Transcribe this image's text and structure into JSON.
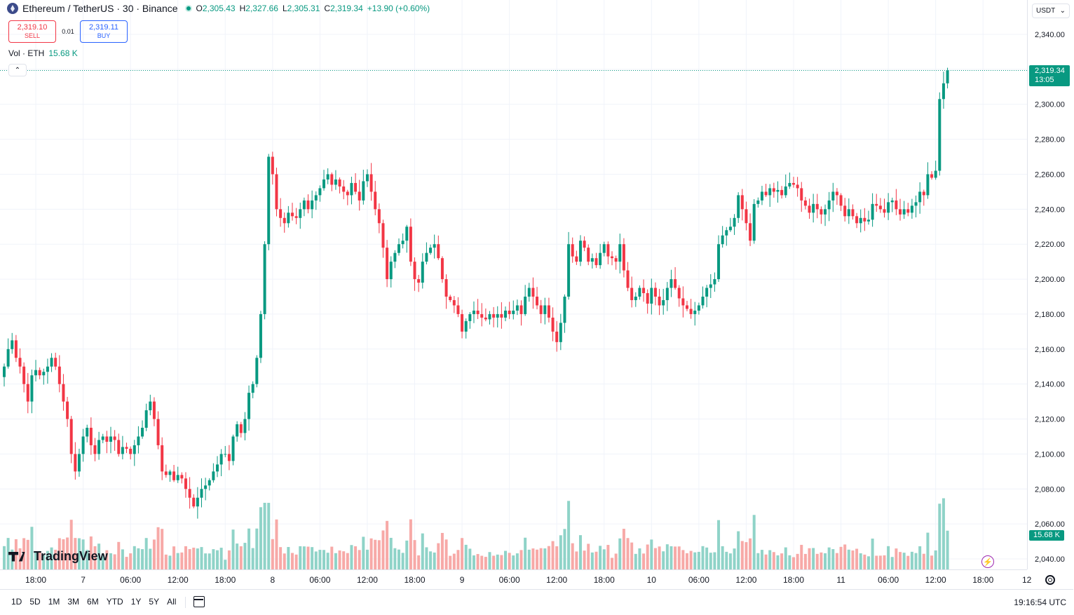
{
  "legend": {
    "symbol": "Ethereum / TetherUS · 30 · Binance",
    "open_label": "O",
    "open": "2,305.43",
    "high_label": "H",
    "high": "2,327.66",
    "low_label": "L",
    "low": "2,305.31",
    "close_label": "C",
    "close": "2,319.34",
    "change": "+13.90 (+0.60%)",
    "coin_icon": "ethereum-coin-icon",
    "status_icon": "market-open-dot-icon"
  },
  "trade": {
    "sell_price": "2,319.10",
    "sell_label": "SELL",
    "spread": "0.01",
    "buy_price": "2,319.11",
    "buy_label": "BUY"
  },
  "volume_legend": {
    "label": "Vol · ETH",
    "value": "15.68 K"
  },
  "currency_selector": {
    "label": "USDT"
  },
  "price_tag": {
    "price": "2,319.34",
    "countdown": "13:05"
  },
  "volume_tag": {
    "value": "15.68 K"
  },
  "logo": {
    "text": "TradingView"
  },
  "range_buttons": [
    "1D",
    "5D",
    "1M",
    "3M",
    "6M",
    "YTD",
    "1Y",
    "5Y",
    "All"
  ],
  "clock": "19:16:54 UTC",
  "colors": {
    "up": "#089981",
    "down": "#f23645",
    "up_vol": "#8fd3c8",
    "down_vol": "#f7a9a7",
    "grid": "#f0f3fa"
  },
  "chart_data": {
    "type": "candlestick",
    "interval": "30m",
    "ylim": [
      2030,
      2350
    ],
    "y_ticks": [
      "2,040.00",
      "2,060.00",
      "2,080.00",
      "2,100.00",
      "2,120.00",
      "2,140.00",
      "2,160.00",
      "2,180.00",
      "2,200.00",
      "2,220.00",
      "2,240.00",
      "2,260.00",
      "2,280.00",
      "2,300.00",
      "2,320.00",
      "2,340.00"
    ],
    "x_ticks": [
      "18:00",
      "7",
      "06:00",
      "12:00",
      "18:00",
      "8",
      "06:00",
      "12:00",
      "18:00",
      "9",
      "06:00",
      "12:00",
      "18:00",
      "10",
      "06:00",
      "12:00",
      "18:00",
      "11",
      "06:00",
      "12:00",
      "18:00",
      "12"
    ],
    "x_ticks_cut": [
      "12"
    ],
    "x_tick_bar_index": [
      8,
      20,
      32,
      44,
      56,
      68,
      80,
      92,
      104,
      116,
      128,
      140,
      152,
      164,
      176,
      188,
      200,
      212,
      224,
      236,
      248,
      260
    ],
    "current_price": 2319.34,
    "close": [
      2150,
      2160,
      2165,
      2155,
      2150,
      2140,
      2130,
      2145,
      2148,
      2145,
      2147,
      2150,
      2155,
      2150,
      2140,
      2130,
      2120,
      2100,
      2090,
      2100,
      2110,
      2115,
      2105,
      2100,
      2108,
      2110,
      2107,
      2110,
      2108,
      2100,
      2104,
      2103,
      2100,
      2105,
      2110,
      2115,
      2125,
      2130,
      2120,
      2105,
      2090,
      2088,
      2090,
      2085,
      2088,
      2086,
      2080,
      2075,
      2070,
      2075,
      2080,
      2082,
      2085,
      2090,
      2094,
      2100,
      2100,
      2096,
      2110,
      2117,
      2112,
      2120,
      2135,
      2140,
      2155,
      2180,
      2220,
      2270,
      2260,
      2240,
      2235,
      2232,
      2238,
      2236,
      2235,
      2240,
      2245,
      2240,
      2245,
      2248,
      2252,
      2257,
      2260,
      2254,
      2257,
      2253,
      2250,
      2248,
      2255,
      2250,
      2245,
      2256,
      2260,
      2250,
      2240,
      2232,
      2218,
      2200,
      2210,
      2215,
      2220,
      2222,
      2230,
      2210,
      2200,
      2198,
      2210,
      2215,
      2218,
      2220,
      2212,
      2200,
      2190,
      2188,
      2185,
      2180,
      2170,
      2176,
      2180,
      2182,
      2180,
      2178,
      2177,
      2180,
      2178,
      2180,
      2178,
      2182,
      2180,
      2182,
      2185,
      2180,
      2190,
      2195,
      2190,
      2185,
      2180,
      2185,
      2178,
      2170,
      2164,
      2175,
      2190,
      2220,
      2213,
      2210,
      2222,
      2218,
      2210,
      2212,
      2208,
      2215,
      2220,
      2213,
      2212,
      2210,
      2220,
      2205,
      2195,
      2188,
      2190,
      2195,
      2192,
      2186,
      2195,
      2190,
      2185,
      2188,
      2195,
      2200,
      2195,
      2189,
      2185,
      2183,
      2180,
      2182,
      2185,
      2190,
      2195,
      2197,
      2200,
      2220,
      2225,
      2228,
      2230,
      2235,
      2248,
      2240,
      2232,
      2222,
      2243,
      2245,
      2250,
      2248,
      2252,
      2250,
      2251,
      2248,
      2253,
      2255,
      2254,
      2252,
      2245,
      2242,
      2238,
      2243,
      2240,
      2237,
      2240,
      2245,
      2250,
      2248,
      2242,
      2236,
      2240,
      2236,
      2232,
      2235,
      2233,
      2234,
      2243,
      2242,
      2240,
      2238,
      2244,
      2245,
      2240,
      2237,
      2240,
      2238,
      2242,
      2244,
      2250,
      2248,
      2260,
      2258,
      2262,
      2303,
      2312,
      2319.34
    ],
    "volume_axis": {
      "max": 32000,
      "current": 15680
    }
  }
}
